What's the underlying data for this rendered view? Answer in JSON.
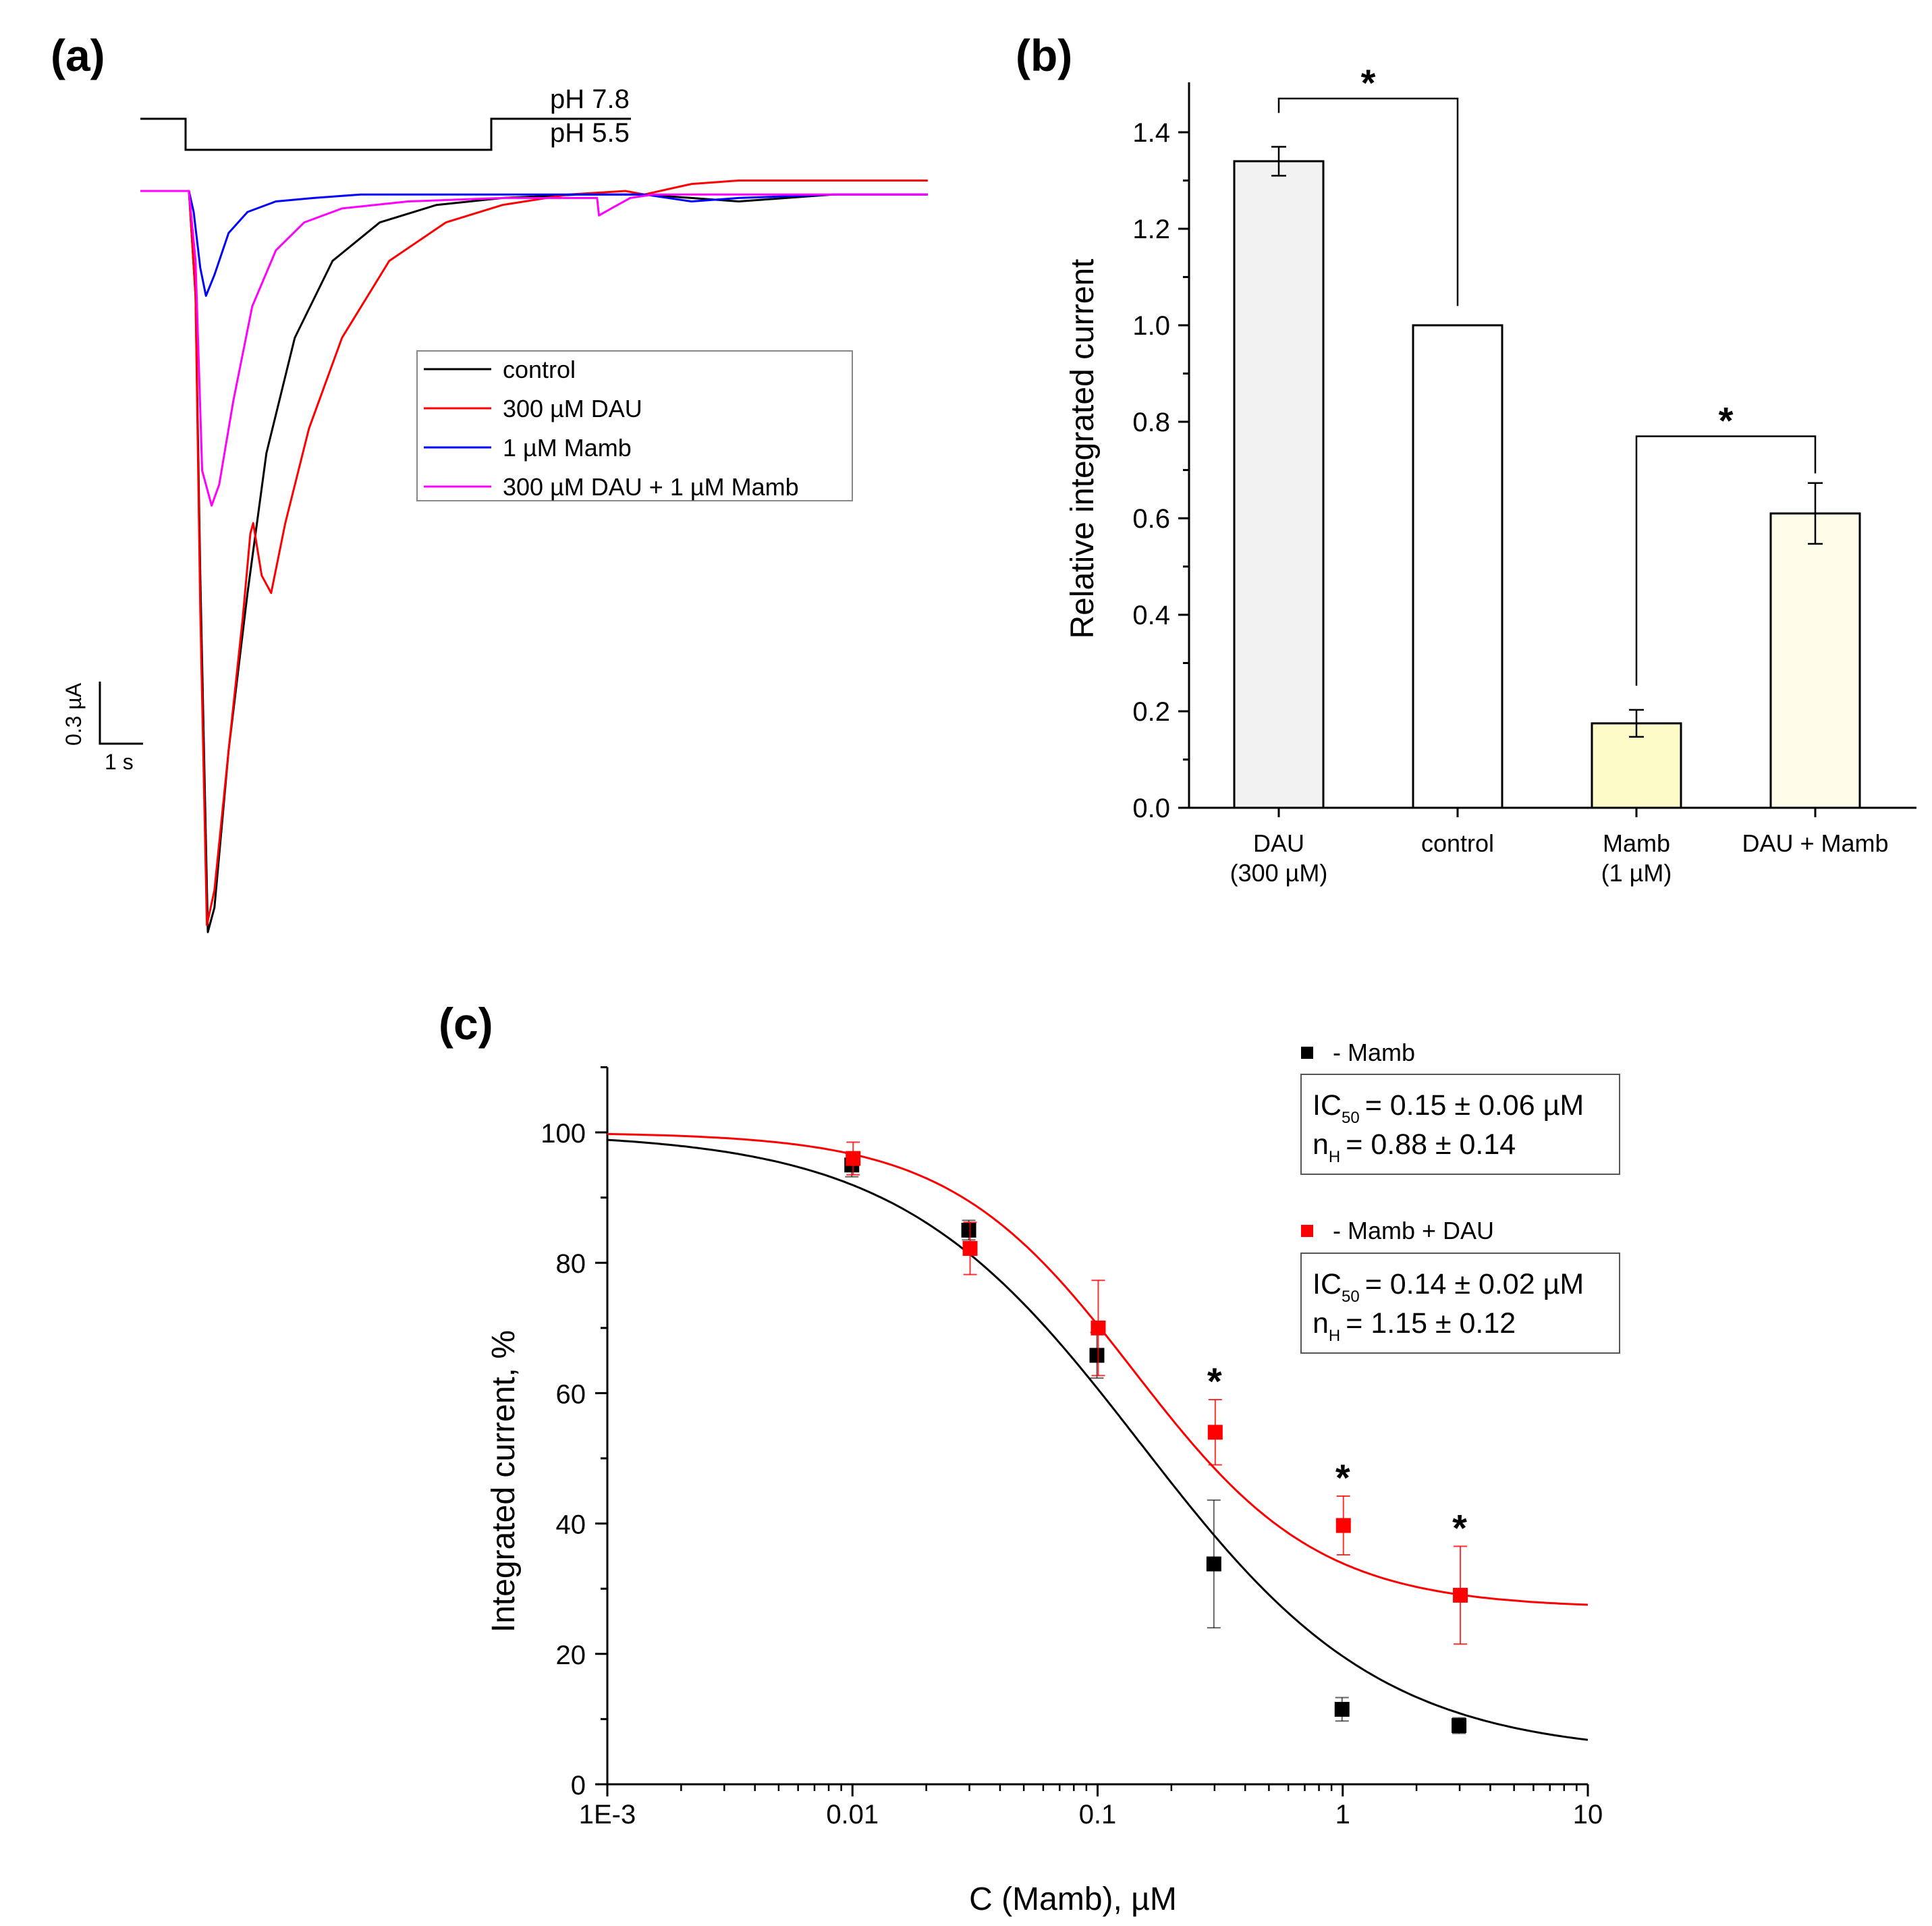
{
  "colors": {
    "control": "#000000",
    "dau": "#ff0000",
    "mamb": "#0000ff",
    "dau_mamb": "#ff00ff",
    "bar_dau": "#f2f2f2",
    "bar_control": "#ffffff",
    "bar_mamb": "#fdfcc8",
    "bar_dau_mamb": "#fefde9"
  },
  "chart_data": [
    {
      "panel": "(a)",
      "type": "line",
      "title": "",
      "protocol_labels": [
        "pH 7.8",
        "pH 5.5"
      ],
      "scale_bar": {
        "current": "0.3 µA",
        "time": "1 s"
      },
      "legend": [
        "control",
        "300 µM DAU",
        "1 µM Mamb",
        "300 µM DAU + 1 µM Mamb"
      ],
      "series": [
        {
          "name": "control",
          "color_key": "control",
          "t": [
            0,
            0.18,
            0.25,
            0.3,
            0.38,
            0.45,
            0.6,
            0.8,
            1.0,
            1.3,
            1.7,
            2.2,
            2.8,
            3.5,
            4.3,
            5.0,
            5.5,
            6.0,
            6.5,
            7.0,
            7.5,
            8.0
          ],
          "i": [
            0,
            0,
            -0.3,
            -1.1,
            -2.12,
            -2.05,
            -1.6,
            -1.15,
            -0.75,
            -0.42,
            -0.2,
            -0.09,
            -0.04,
            -0.02,
            -0.01,
            -0.01,
            -0.02,
            -0.03,
            -0.02,
            -0.01,
            -0.01,
            -0.01
          ]
        },
        {
          "name": "300 µM DAU",
          "color_key": "dau",
          "t": [
            0,
            0.18,
            0.25,
            0.3,
            0.37,
            0.45,
            0.6,
            0.75,
            0.83,
            0.86,
            0.95,
            1.05,
            1.2,
            1.45,
            1.8,
            2.3,
            2.9,
            3.5,
            4.2,
            4.8,
            5.0,
            5.5,
            6.0,
            7.0,
            8.0
          ],
          "i": [
            0,
            0,
            -0.3,
            -1.2,
            -2.1,
            -2.0,
            -1.6,
            -1.22,
            -0.98,
            -0.95,
            -1.1,
            -1.15,
            -0.95,
            -0.68,
            -0.42,
            -0.2,
            -0.09,
            -0.04,
            -0.01,
            0.0,
            -0.01,
            0.02,
            0.03,
            0.03,
            0.03
          ]
        },
        {
          "name": "1 µM Mamb",
          "color_key": "mamb",
          "t": [
            0,
            0.18,
            0.23,
            0.3,
            0.36,
            0.45,
            0.6,
            0.8,
            1.1,
            1.5,
            2.0,
            3.0,
            4.5,
            5.0,
            5.5,
            6.0,
            7.0,
            8.0
          ],
          "i": [
            0,
            0,
            -0.06,
            -0.22,
            -0.3,
            -0.24,
            -0.12,
            -0.06,
            -0.03,
            -0.02,
            -0.01,
            -0.01,
            -0.01,
            -0.01,
            -0.03,
            -0.02,
            -0.01,
            -0.01
          ]
        },
        {
          "name": "300 µM DAU + 1 µM Mamb",
          "color_key": "dau_mamb",
          "t": [
            0,
            0.18,
            0.25,
            0.32,
            0.42,
            0.5,
            0.65,
            0.85,
            1.1,
            1.4,
            1.8,
            2.5,
            3.5,
            4.4,
            4.5,
            4.52,
            4.65,
            4.85,
            5.1,
            5.5,
            6.0,
            7.0,
            8.0
          ],
          "i": [
            0,
            0,
            -0.2,
            -0.8,
            -0.9,
            -0.84,
            -0.6,
            -0.33,
            -0.17,
            -0.09,
            -0.05,
            -0.03,
            -0.02,
            -0.02,
            -0.02,
            -0.07,
            -0.05,
            -0.02,
            -0.01,
            -0.01,
            -0.01,
            -0.01,
            -0.01
          ]
        }
      ]
    },
    {
      "panel": "(b)",
      "type": "bar",
      "categories": [
        [
          "DAU",
          "(300 µM)"
        ],
        [
          "control"
        ],
        [
          "Mamb",
          "(1 µM)"
        ],
        [
          "DAU + Mamb"
        ]
      ],
      "values": [
        1.34,
        1.0,
        0.175,
        0.61
      ],
      "errors": [
        0.03,
        0.0,
        0.028,
        0.063
      ],
      "bar_color_keys": [
        "bar_dau",
        "bar_control",
        "bar_mamb",
        "bar_dau_mamb"
      ],
      "ylabel": "Relative integrated current",
      "xlabel": "",
      "ylim": [
        0,
        1.5
      ],
      "yticks": [
        0.0,
        0.2,
        0.4,
        0.6,
        0.8,
        1.0,
        1.2,
        1.4
      ],
      "ytick_labels": [
        "0.0",
        "0.2",
        "0.4",
        "0.6",
        "0.8",
        "1.0",
        "1.2",
        "1.4"
      ],
      "significance": [
        {
          "from": 0,
          "to": 1,
          "label": "*"
        },
        {
          "from": 2,
          "to": 3,
          "label": "*"
        }
      ]
    },
    {
      "panel": "(c)",
      "type": "scatter",
      "xscale": "log",
      "xlim": [
        0.001,
        10
      ],
      "ylim": [
        0,
        110
      ],
      "xlabel": "C (Mamb), µM",
      "ylabel": "Integrated current, %",
      "xticks": [
        0.001,
        0.01,
        0.1,
        1,
        10
      ],
      "xtick_labels": [
        "1E-3",
        "0.01",
        "0.1",
        "1",
        "10"
      ],
      "yticks": [
        0,
        20,
        40,
        60,
        80,
        100
      ],
      "ytick_labels": [
        "0",
        "20",
        "40",
        "60",
        "80",
        "100"
      ],
      "series": [
        {
          "name": "- Mamb",
          "color_key": "control",
          "x": [
            0.01,
            0.03,
            0.1,
            0.3,
            1,
            3
          ],
          "y": [
            95.0,
            85.0,
            65.8,
            33.8,
            11.5,
            9.0
          ],
          "yerr": [
            1.8,
            1.5,
            3.5,
            9.8,
            1.8,
            1.2
          ],
          "fit": {
            "IC50": 0.15,
            "nH": 0.88,
            "top": 100,
            "bottom": 4.5
          }
        },
        {
          "name": "- Mamb + DAU",
          "color_key": "dau",
          "x": [
            0.01,
            0.03,
            0.1,
            0.3,
            1,
            3
          ],
          "y": [
            96.0,
            82.2,
            70.0,
            54.0,
            39.7,
            29.0
          ],
          "yerr": [
            2.5,
            4.0,
            7.3,
            5.0,
            4.5,
            7.5
          ],
          "fit": {
            "IC50": 0.14,
            "nH": 1.15,
            "top": 100,
            "bottom": 27
          }
        }
      ],
      "significance_at_x": [
        0.3,
        1,
        3
      ],
      "significance_label": "*",
      "fit_boxes": [
        {
          "ic_prefix": "IC",
          "ic_sub": "50",
          "ic_value": "= 0.15 ± 0.06 µM",
          "n_prefix": "n",
          "n_sub": "H",
          "n_value": "= 0.88 ± 0.14"
        },
        {
          "ic_prefix": "IC",
          "ic_sub": "50",
          "ic_value": "= 0.14 ± 0.02 µM",
          "n_prefix": "n",
          "n_sub": "H",
          "n_value": "= 1.15 ± 0.12"
        }
      ]
    }
  ]
}
